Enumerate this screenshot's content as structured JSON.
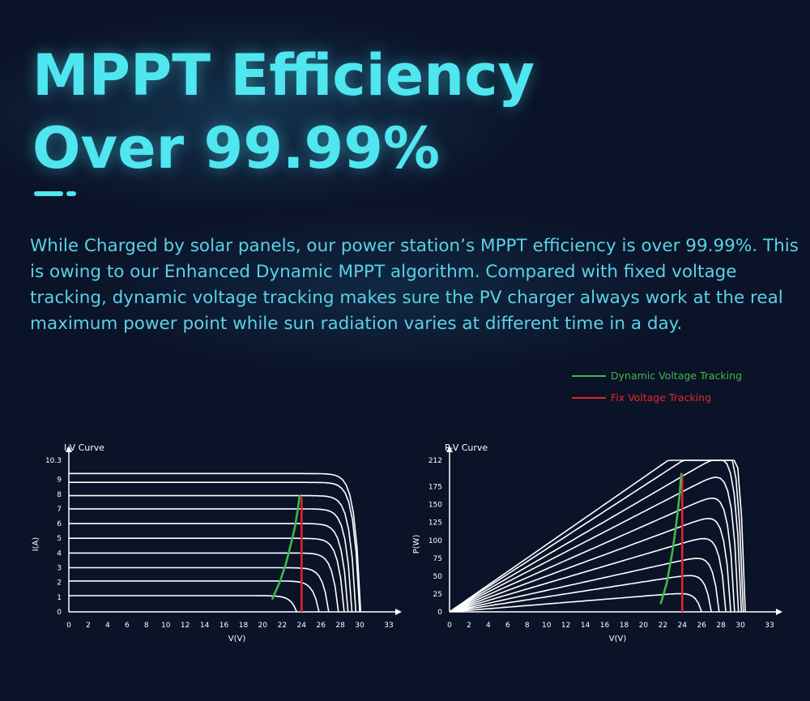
{
  "header": {
    "title_line1": "MPPT Efficiency",
    "title_line2": "Over 99.99%"
  },
  "description": "While Charged by solar panels, our power station’s MPPT efficiency is over 99.99%. This is owing to our Enhanced Dynamic MPPT algorithm. Compared with fixed voltage tracking, dynamic voltage tracking makes sure the PV charger always work at the real maximum power point while sun radiation varies at different time in a day.",
  "colors": {
    "accent": "#4fe6ef",
    "description": "#5ad2e6",
    "background": "#0b1328",
    "dynamic": "#3fb84a",
    "fixed": "#e0262a",
    "curve": "#ffffff"
  },
  "legend": [
    {
      "label": "Dynamic Voltage Tracking",
      "color": "#3fb84a"
    },
    {
      "label": "Fix Voltage Tracking",
      "color": "#e0262a"
    }
  ],
  "chart_data": [
    {
      "type": "line",
      "title": "I-V Curve",
      "xlabel": "V(V)",
      "ylabel": "I(A)",
      "xlim": [
        0,
        33
      ],
      "ylim": [
        0,
        10.3
      ],
      "x_ticks": [
        "0",
        "2",
        "4",
        "6",
        "8",
        "10",
        "12",
        "14",
        "16",
        "18",
        "20",
        "22",
        "24",
        "26",
        "28",
        "30",
        "33"
      ],
      "y_ticks": [
        "0",
        "1",
        "2",
        "3",
        "4",
        "5",
        "6",
        "7",
        "8",
        "9",
        "10.3"
      ],
      "isc": [
        1.1,
        2.1,
        3.0,
        4.0,
        5.0,
        6.0,
        7.0,
        7.9,
        8.8,
        9.4
      ],
      "voc": [
        23.5,
        25.8,
        26.8,
        27.8,
        28.4,
        28.8,
        29.2,
        29.6,
        30.0,
        30.1
      ],
      "dynamic_tracking": [
        [
          21.0,
          0.9
        ],
        [
          21.8,
          2.1
        ],
        [
          22.4,
          3.3
        ],
        [
          22.9,
          4.6
        ],
        [
          23.3,
          5.7
        ],
        [
          23.6,
          6.9
        ],
        [
          23.8,
          7.9
        ]
      ],
      "fixed_tracking": {
        "x": 24,
        "y_range": [
          0,
          7.8
        ]
      }
    },
    {
      "type": "line",
      "title": "P-V Curve",
      "xlabel": "V(V)",
      "ylabel": "P(W)",
      "xlim": [
        0,
        33
      ],
      "ylim": [
        0,
        212
      ],
      "x_ticks": [
        "0",
        "2",
        "4",
        "6",
        "8",
        "10",
        "12",
        "14",
        "16",
        "18",
        "20",
        "22",
        "24",
        "26",
        "28",
        "30",
        "33"
      ],
      "y_ticks": [
        "0",
        "25",
        "50",
        "75",
        "100",
        "125",
        "150",
        "175",
        "212"
      ],
      "isc": [
        1.1,
        2.1,
        3.0,
        4.0,
        5.0,
        6.0,
        7.0,
        7.9,
        8.8,
        9.4
      ],
      "voc": [
        26.0,
        27.0,
        27.8,
        28.5,
        29.0,
        29.4,
        29.8,
        30.1,
        30.3,
        30.5
      ],
      "dynamic_tracking": [
        [
          21.8,
          12
        ],
        [
          22.4,
          40
        ],
        [
          23.0,
          85
        ],
        [
          23.4,
          125
        ],
        [
          23.7,
          160
        ],
        [
          23.9,
          193
        ]
      ],
      "fixed_tracking": {
        "x": 24,
        "y_range": [
          0,
          193
        ]
      }
    }
  ]
}
